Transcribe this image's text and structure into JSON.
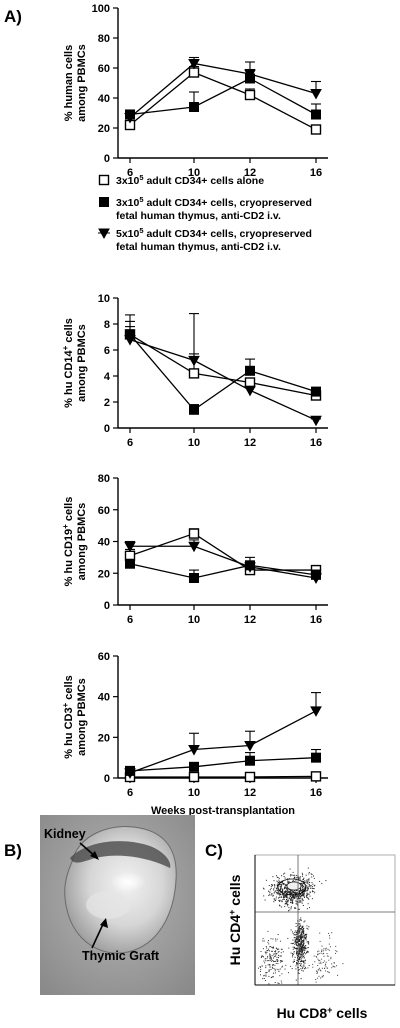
{
  "panels": {
    "a": "A)",
    "b": "B)",
    "c": "C)"
  },
  "legend": [
    {
      "marker": "open-square",
      "line1": "3x10",
      "sup": "5",
      "line1_rest": " adult CD34+ cells alone",
      "line2": ""
    },
    {
      "marker": "filled-square",
      "line1": "3x10",
      "sup": "5",
      "line1_rest": " adult CD34+ cells, cryopreserved",
      "line2": "fetal human thymus, anti-CD2 i.v."
    },
    {
      "marker": "down-triangle",
      "line1": "5x10",
      "sup": "5",
      "line1_rest": " adult CD34+ cells, cryopreserved",
      "line2": "fetal human thymus, anti-CD2 i.v."
    }
  ],
  "chart_data": [
    {
      "type": "line",
      "x": [
        6,
        10,
        12,
        16
      ],
      "xlabel": "",
      "ylabel_parts": [
        "% human cells",
        "among PBMCs"
      ],
      "ylim": [
        0,
        100
      ],
      "yticks": [
        0,
        20,
        40,
        60,
        80,
        100
      ],
      "series": [
        {
          "marker": "open-square",
          "values": [
            22,
            57,
            42,
            19
          ],
          "err": [
            2,
            4,
            4,
            2
          ]
        },
        {
          "marker": "filled-square",
          "values": [
            29,
            34,
            53,
            29
          ],
          "err": [
            3,
            10,
            6,
            7
          ]
        },
        {
          "marker": "down-triangle",
          "values": [
            27,
            63,
            56,
            43
          ],
          "err": [
            3,
            4,
            8,
            8
          ]
        }
      ]
    },
    {
      "type": "line",
      "x": [
        6,
        10,
        12,
        16
      ],
      "xlabel": "",
      "ylabel_parts": [
        "% hu CD14",
        "+",
        " cells",
        "among PBMCs"
      ],
      "ylim": [
        0,
        10
      ],
      "yticks": [
        0,
        2,
        4,
        6,
        8,
        10
      ],
      "series": [
        {
          "marker": "open-square",
          "values": [
            7.2,
            4.2,
            3.5,
            2.5
          ],
          "err": [
            1.0,
            1.5,
            0.3,
            0.3
          ]
        },
        {
          "marker": "filled-square",
          "values": [
            7.2,
            1.4,
            4.4,
            2.8
          ],
          "err": [
            1.5,
            0.4,
            0.9,
            0.2
          ]
        },
        {
          "marker": "down-triangle",
          "values": [
            6.8,
            5.2,
            2.9,
            0.6
          ],
          "err": [
            1.0,
            3.6,
            0.3,
            0.1
          ]
        }
      ]
    },
    {
      "type": "line",
      "x": [
        6,
        10,
        12,
        16
      ],
      "xlabel": "",
      "ylabel_parts": [
        "% hu CD19",
        "+",
        " cells",
        "among PBMCs"
      ],
      "ylim": [
        0,
        80
      ],
      "yticks": [
        0,
        20,
        40,
        60,
        80
      ],
      "series": [
        {
          "marker": "open-square",
          "values": [
            31,
            45,
            22,
            22
          ],
          "err": [
            4,
            3,
            2,
            2
          ]
        },
        {
          "marker": "filled-square",
          "values": [
            26,
            17,
            25,
            19
          ],
          "err": [
            2,
            5,
            5,
            3
          ]
        },
        {
          "marker": "down-triangle",
          "values": [
            37,
            37,
            24,
            17
          ],
          "err": [
            3,
            4,
            3,
            2
          ]
        }
      ]
    },
    {
      "type": "line",
      "x": [
        6,
        10,
        12,
        16
      ],
      "xlabel": "Weeks post-transplantation",
      "ylabel_parts": [
        "% hu CD3",
        "+",
        " cells",
        "among PBMCs"
      ],
      "ylim": [
        0,
        60
      ],
      "yticks": [
        0,
        20,
        40,
        60
      ],
      "series": [
        {
          "marker": "open-square",
          "values": [
            0.5,
            0.5,
            0.5,
            0.8
          ],
          "err": [
            0.3,
            0.3,
            0.3,
            1.0
          ]
        },
        {
          "marker": "filled-square",
          "values": [
            3.5,
            5.5,
            8.5,
            10
          ],
          "err": [
            1,
            2,
            4,
            4
          ]
        },
        {
          "marker": "down-triangle",
          "values": [
            2.5,
            14,
            16,
            33
          ],
          "err": [
            1,
            8,
            7,
            9
          ]
        }
      ]
    }
  ],
  "photo": {
    "kidney_label": "Kidney",
    "graft_label": "Thymic Graft"
  },
  "flow": {
    "ylabel": "Hu CD4",
    "ylabel_sup": "+",
    "ylabel_rest": " cells",
    "xlabel": "Hu CD8",
    "xlabel_sup": "+",
    "xlabel_rest": " cells"
  }
}
